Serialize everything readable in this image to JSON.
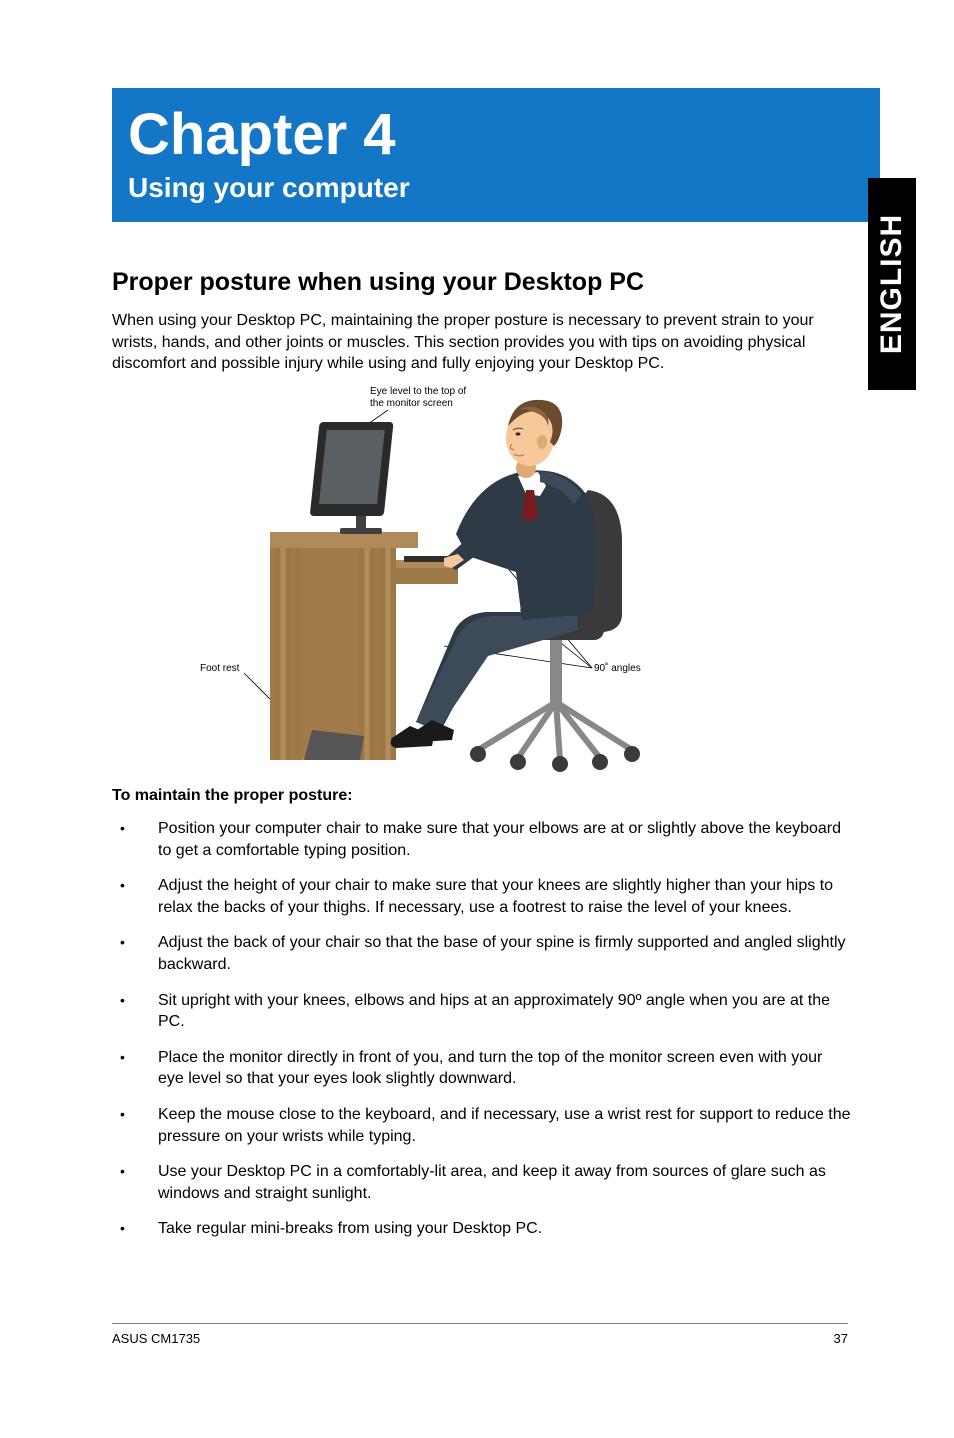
{
  "banner": {
    "bg_color": "#1476c6",
    "title": "Chapter 4",
    "subtitle": "Using your computer"
  },
  "side_tab": {
    "label": "ENGLISH",
    "bg_color": "#000000",
    "text_color": "#ffffff"
  },
  "section_heading": "Proper posture when using your Desktop PC",
  "intro_paragraph": "When using your Desktop PC, maintaining the proper posture is necessary to prevent strain to your wrists, hands, and other joints or muscles. This section provides you with tips on avoiding physical discomfort and possible injury while using and fully enjoying your Desktop PC.",
  "illustration": {
    "callout_eye_line1": "Eye level to the top of",
    "callout_eye_line2": "the monitor screen",
    "callout_foot": "Foot rest",
    "callout_angles": "90˚ angles",
    "colors": {
      "desk_top": "#b08a58",
      "desk_side": "#9c7844",
      "desk_grain1": "#a07a48",
      "desk_grain2": "#b28c5a",
      "monitor": "#2a2a2a",
      "monitor_screen": "#5a5f63",
      "monitor_stand": "#404040",
      "keyboard": "#2e2e2e",
      "suit": "#2f3a47",
      "suit_light": "#3c4a5a",
      "shirt": "#ffffff",
      "tie": "#7a1b1b",
      "skin": "#f6c89a",
      "skin_shadow": "#e0a872",
      "hair": "#6b4a2e",
      "hair_light": "#8a6238",
      "chair": "#3a3a3a",
      "chair_light": "#5a5a5a",
      "chair_metal": "#888888",
      "shoe": "#1a1a1a",
      "footrest": "#555555",
      "line": "#000000"
    }
  },
  "sub_heading": "To maintain the proper posture:",
  "bullets": [
    "Position your computer chair to make sure that your elbows are at or slightly above the keyboard to get a comfortable typing position.",
    "Adjust the height of your chair to make sure that your knees are slightly higher than your hips to relax the backs of your thighs. If necessary, use a footrest to raise the level of your knees.",
    "Adjust the back of your chair so that the base of your spine is firmly supported and angled slightly backward.",
    "Sit upright with your knees, elbows and hips at an approximately 90º angle when you are at the PC.",
    "Place the monitor directly in front of you, and turn the top of the monitor screen even with your eye level so that your eyes look slightly downward.",
    "Keep the mouse close to the keyboard, and if necessary, use a wrist rest for support to reduce the pressure on your wrists while typing.",
    "Use your Desktop PC in a comfortably-lit area, and keep it away from sources of glare such as windows and straight sunlight.",
    "Take regular mini-breaks from using your Desktop PC."
  ],
  "footer": {
    "model": "ASUS CM1735",
    "page": "37"
  }
}
